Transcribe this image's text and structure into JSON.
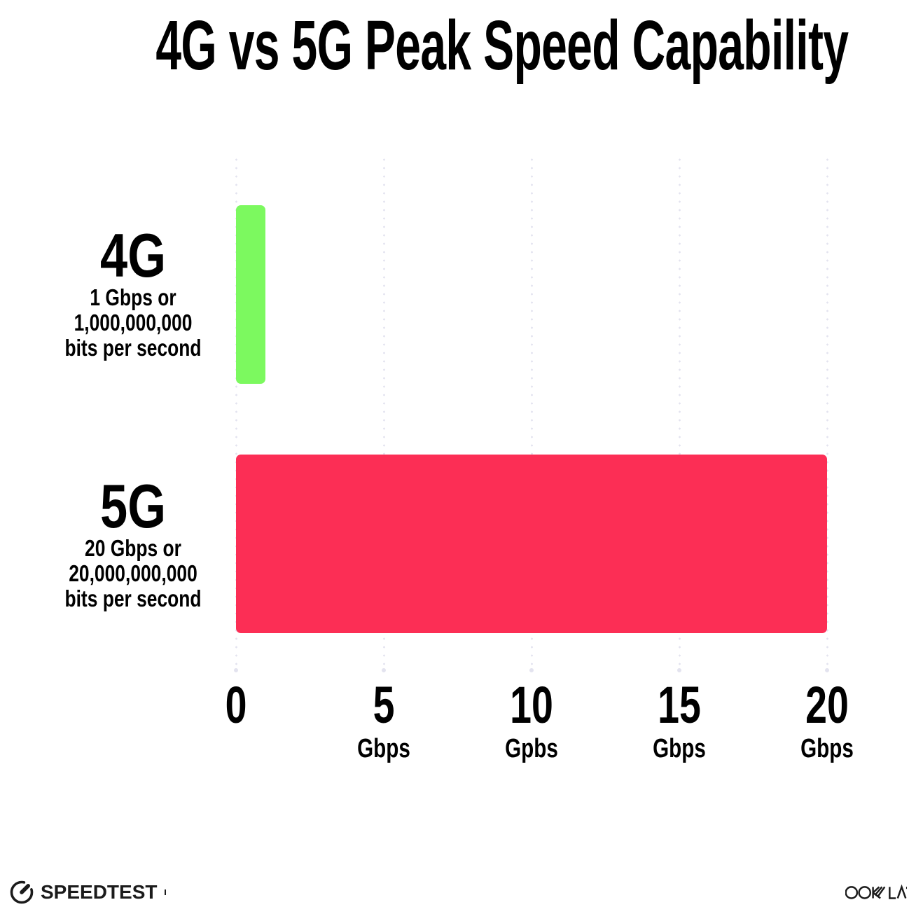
{
  "title": "4G vs 5G Peak Speed Capability",
  "colors": {
    "background": "#FFFFFF",
    "text": "#000000",
    "bar_4g": "#7CF95F",
    "bar_5g": "#FC2E55",
    "gridline": "#E3E3EF",
    "logo": "#1B1B1B"
  },
  "chart_data": {
    "type": "bar",
    "orientation": "horizontal",
    "title": "4G vs 5G Peak Speed Capability",
    "categories": [
      "4G",
      "5G"
    ],
    "values": [
      1,
      20
    ],
    "value_unit": "Gbps",
    "xlim": [
      0,
      20
    ],
    "grid": "vertical dotted gridlines at 0, 5, 10, 15, 20",
    "legend": "none",
    "x_ticks": [
      {
        "value": "0",
        "unit": ""
      },
      {
        "value": "5",
        "unit": "Gbps"
      },
      {
        "value": "10",
        "unit": "Gpbs"
      },
      {
        "value": "15",
        "unit": "Gbps"
      },
      {
        "value": "20",
        "unit": "Gbps"
      }
    ],
    "rows": [
      {
        "label": "4G",
        "sublines": [
          "1 Gbps or",
          "1,000,000,000",
          "bits per second"
        ],
        "value_gbps": 1,
        "color": "#7CF95F"
      },
      {
        "label": "5G",
        "sublines": [
          "20 Gbps or",
          "20,000,000,000",
          "bits per second"
        ],
        "value_gbps": 20,
        "color": "#FC2E55"
      }
    ]
  },
  "footer": {
    "speedtest_label": "SPEEDTEST",
    "ookla_label": "OOKLA"
  }
}
